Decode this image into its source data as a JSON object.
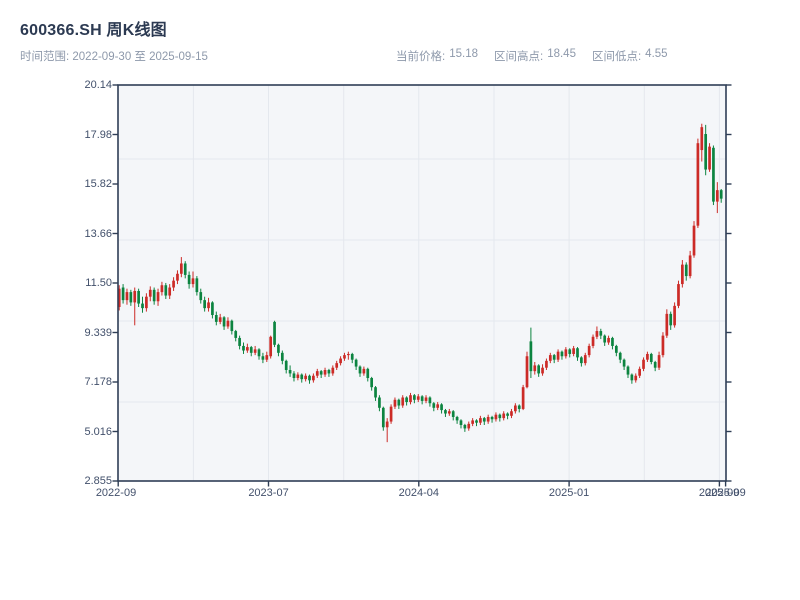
{
  "header": {
    "title": "600366.SH 周K线图",
    "subtitle_left": "时间范围: 2022-09-30 至 2025-09-15",
    "stats": [
      {
        "label": "当前价格:",
        "value": "15.18"
      },
      {
        "label": "区间高点:",
        "value": "18.45"
      },
      {
        "label": "区间低点:",
        "value": "4.55"
      }
    ]
  },
  "chart_data": {
    "type": "candlestick",
    "title": "600366.SH 周K线图",
    "period": "weekly",
    "date_range": [
      "2022-09-30",
      "2025-09-15"
    ],
    "current_price": 15.18,
    "range_high": 18.45,
    "range_low": 4.55,
    "ylim": [
      2.855,
      20.14
    ],
    "y_tick_labels": [
      "20.14",
      "17.98",
      "15.82",
      "13.66",
      "11.50",
      "9.339",
      "7.178",
      "5.016",
      "2.855"
    ],
    "x_tick_labels": [
      "2022-09",
      "2023-07",
      "2024-04",
      "2025-01",
      "2025-09",
      "2025-09"
    ],
    "legend": "none",
    "grid": "on",
    "colors": {
      "up": "#cc2b27",
      "down": "#0c8440",
      "plot_bg": "#f4f6f9",
      "grid": "#e4e8ee",
      "spine": "#2f3e56"
    },
    "candles_ohlc": [
      [
        10.45,
        11.4,
        10.3,
        11.25
      ],
      [
        11.3,
        11.45,
        10.6,
        10.75
      ],
      [
        10.75,
        11.25,
        10.55,
        11.1
      ],
      [
        11.1,
        11.2,
        10.5,
        10.65
      ],
      [
        10.65,
        11.3,
        9.65,
        11.15
      ],
      [
        11.15,
        11.25,
        10.45,
        10.6
      ],
      [
        10.6,
        10.9,
        10.2,
        10.4
      ],
      [
        10.4,
        11.05,
        10.25,
        10.9
      ],
      [
        10.9,
        11.35,
        10.7,
        11.2
      ],
      [
        11.2,
        11.3,
        10.55,
        10.7
      ],
      [
        10.7,
        11.25,
        10.5,
        11.1
      ],
      [
        11.1,
        11.55,
        10.95,
        11.4
      ],
      [
        11.4,
        11.5,
        10.8,
        10.95
      ],
      [
        10.95,
        11.45,
        10.8,
        11.3
      ],
      [
        11.3,
        11.75,
        11.15,
        11.6
      ],
      [
        11.6,
        12.05,
        11.45,
        11.9
      ],
      [
        11.9,
        12.63,
        11.75,
        12.35
      ],
      [
        12.35,
        12.45,
        11.7,
        11.85
      ],
      [
        11.85,
        12.0,
        11.25,
        11.45
      ],
      [
        11.45,
        12.0,
        11.3,
        11.7
      ],
      [
        11.7,
        11.8,
        10.95,
        11.1
      ],
      [
        11.1,
        11.25,
        10.6,
        10.75
      ],
      [
        10.75,
        10.9,
        10.25,
        10.4
      ],
      [
        10.4,
        10.85,
        10.25,
        10.65
      ],
      [
        10.65,
        10.7,
        9.95,
        10.1
      ],
      [
        10.1,
        10.25,
        9.65,
        9.8
      ],
      [
        9.8,
        10.15,
        9.7,
        10.0
      ],
      [
        10.0,
        10.05,
        9.45,
        9.6
      ],
      [
        9.6,
        10.0,
        9.5,
        9.85
      ],
      [
        9.85,
        9.9,
        9.25,
        9.4
      ],
      [
        9.4,
        9.45,
        8.95,
        9.1
      ],
      [
        9.1,
        9.2,
        8.6,
        8.75
      ],
      [
        8.75,
        8.9,
        8.4,
        8.55
      ],
      [
        8.55,
        8.85,
        8.45,
        8.7
      ],
      [
        8.7,
        8.75,
        8.3,
        8.45
      ],
      [
        8.45,
        8.75,
        8.35,
        8.6
      ],
      [
        8.6,
        8.65,
        8.15,
        8.3
      ],
      [
        8.3,
        8.45,
        8.0,
        8.15
      ],
      [
        8.15,
        8.5,
        8.05,
        8.35
      ],
      [
        8.3,
        9.2,
        8.2,
        9.15
      ],
      [
        9.8,
        9.85,
        8.7,
        8.8
      ],
      [
        8.8,
        8.85,
        8.3,
        8.45
      ],
      [
        8.45,
        8.55,
        7.95,
        8.1
      ],
      [
        8.1,
        8.15,
        7.55,
        7.7
      ],
      [
        7.7,
        7.9,
        7.4,
        7.55
      ],
      [
        7.55,
        7.65,
        7.2,
        7.35
      ],
      [
        7.35,
        7.6,
        7.25,
        7.5
      ],
      [
        7.5,
        7.55,
        7.15,
        7.3
      ],
      [
        7.3,
        7.55,
        7.2,
        7.45
      ],
      [
        7.45,
        7.5,
        7.1,
        7.25
      ],
      [
        7.25,
        7.55,
        7.15,
        7.45
      ],
      [
        7.45,
        7.75,
        7.35,
        7.65
      ],
      [
        7.65,
        7.7,
        7.35,
        7.5
      ],
      [
        7.5,
        7.8,
        7.4,
        7.7
      ],
      [
        7.7,
        7.75,
        7.4,
        7.55
      ],
      [
        7.55,
        7.9,
        7.45,
        7.8
      ],
      [
        7.8,
        8.1,
        7.7,
        8.0
      ],
      [
        8.0,
        8.3,
        7.9,
        8.2
      ],
      [
        8.2,
        8.45,
        8.1,
        8.35
      ],
      [
        8.35,
        8.5,
        8.15,
        8.4
      ],
      [
        8.4,
        8.45,
        8.0,
        8.15
      ],
      [
        8.15,
        8.2,
        7.7,
        7.85
      ],
      [
        7.85,
        7.9,
        7.4,
        7.55
      ],
      [
        7.55,
        7.85,
        7.45,
        7.75
      ],
      [
        7.75,
        7.8,
        7.2,
        7.35
      ],
      [
        7.35,
        7.4,
        6.8,
        6.95
      ],
      [
        6.95,
        7.0,
        6.35,
        6.5
      ],
      [
        6.5,
        6.6,
        5.9,
        6.05
      ],
      [
        6.05,
        6.1,
        5.05,
        5.2
      ],
      [
        5.2,
        5.6,
        4.55,
        5.45
      ],
      [
        5.45,
        6.2,
        5.35,
        6.1
      ],
      [
        6.1,
        6.5,
        6.0,
        6.4
      ],
      [
        6.4,
        6.45,
        6.0,
        6.15
      ],
      [
        6.15,
        6.6,
        6.05,
        6.5
      ],
      [
        6.5,
        6.55,
        6.15,
        6.3
      ],
      [
        6.3,
        6.7,
        6.2,
        6.6
      ],
      [
        6.6,
        6.65,
        6.25,
        6.4
      ],
      [
        6.4,
        6.65,
        6.3,
        6.55
      ],
      [
        6.55,
        6.6,
        6.2,
        6.35
      ],
      [
        6.35,
        6.6,
        6.25,
        6.5
      ],
      [
        6.5,
        6.55,
        6.1,
        6.25
      ],
      [
        6.25,
        6.3,
        5.9,
        6.05
      ],
      [
        6.05,
        6.3,
        5.95,
        6.2
      ],
      [
        6.2,
        6.25,
        5.8,
        5.95
      ],
      [
        5.95,
        6.0,
        5.65,
        5.8
      ],
      [
        5.8,
        6.0,
        5.7,
        5.9
      ],
      [
        5.9,
        5.95,
        5.5,
        5.65
      ],
      [
        5.65,
        5.7,
        5.35,
        5.5
      ],
      [
        5.5,
        5.55,
        5.15,
        5.3
      ],
      [
        5.3,
        5.35,
        5.0,
        5.15
      ],
      [
        5.15,
        5.45,
        5.05,
        5.35
      ],
      [
        5.35,
        5.6,
        5.25,
        5.5
      ],
      [
        5.5,
        5.55,
        5.25,
        5.4
      ],
      [
        5.4,
        5.7,
        5.3,
        5.6
      ],
      [
        5.6,
        5.65,
        5.3,
        5.45
      ],
      [
        5.45,
        5.75,
        5.35,
        5.65
      ],
      [
        5.65,
        5.7,
        5.4,
        5.55
      ],
      [
        5.55,
        5.85,
        5.45,
        5.75
      ],
      [
        5.75,
        5.8,
        5.45,
        5.6
      ],
      [
        5.6,
        5.9,
        5.5,
        5.8
      ],
      [
        5.8,
        5.85,
        5.55,
        5.7
      ],
      [
        5.7,
        6.0,
        5.6,
        5.9
      ],
      [
        5.9,
        6.25,
        5.8,
        6.15
      ],
      [
        6.15,
        6.2,
        5.85,
        6.0
      ],
      [
        6.0,
        7.05,
        5.95,
        6.95
      ],
      [
        6.95,
        8.5,
        6.9,
        8.3
      ],
      [
        8.95,
        9.55,
        7.35,
        7.65
      ],
      [
        7.65,
        8.05,
        7.5,
        7.9
      ],
      [
        7.9,
        7.95,
        7.4,
        7.55
      ],
      [
        7.55,
        7.95,
        7.45,
        7.8
      ],
      [
        7.8,
        8.2,
        7.7,
        8.1
      ],
      [
        8.1,
        8.45,
        8.0,
        8.35
      ],
      [
        8.35,
        8.4,
        8.0,
        8.15
      ],
      [
        8.15,
        8.6,
        8.05,
        8.5
      ],
      [
        8.5,
        8.55,
        8.15,
        8.3
      ],
      [
        8.3,
        8.7,
        8.2,
        8.6
      ],
      [
        8.6,
        8.65,
        8.25,
        8.4
      ],
      [
        8.4,
        8.75,
        8.3,
        8.65
      ],
      [
        8.65,
        8.7,
        8.1,
        8.25
      ],
      [
        8.25,
        8.3,
        7.85,
        8.0
      ],
      [
        8.0,
        8.45,
        7.9,
        8.35
      ],
      [
        8.35,
        8.85,
        8.25,
        8.75
      ],
      [
        8.75,
        9.25,
        8.65,
        9.15
      ],
      [
        9.15,
        9.6,
        9.05,
        9.4
      ],
      [
        9.4,
        9.5,
        9.05,
        9.2
      ],
      [
        9.2,
        9.25,
        8.75,
        8.9
      ],
      [
        8.9,
        9.2,
        8.8,
        9.1
      ],
      [
        9.1,
        9.15,
        8.6,
        8.75
      ],
      [
        8.75,
        8.8,
        8.3,
        8.45
      ],
      [
        8.45,
        8.5,
        8.0,
        8.15
      ],
      [
        8.15,
        8.2,
        7.7,
        7.85
      ],
      [
        7.85,
        7.9,
        7.35,
        7.5
      ],
      [
        7.5,
        7.55,
        7.1,
        7.25
      ],
      [
        7.25,
        7.55,
        7.15,
        7.45
      ],
      [
        7.45,
        7.85,
        7.35,
        7.75
      ],
      [
        7.75,
        8.25,
        7.65,
        8.15
      ],
      [
        8.15,
        8.5,
        8.05,
        8.4
      ],
      [
        8.4,
        8.45,
        7.95,
        8.05
      ],
      [
        8.05,
        8.1,
        7.65,
        7.8
      ],
      [
        7.8,
        8.5,
        7.7,
        8.35
      ],
      [
        8.35,
        9.35,
        8.25,
        9.2
      ],
      [
        9.2,
        10.35,
        9.1,
        10.15
      ],
      [
        10.15,
        10.25,
        9.45,
        9.65
      ],
      [
        9.65,
        10.65,
        9.55,
        10.5
      ],
      [
        10.5,
        11.6,
        10.4,
        11.45
      ],
      [
        11.45,
        12.5,
        11.3,
        12.3
      ],
      [
        12.3,
        12.4,
        11.6,
        11.8
      ],
      [
        11.8,
        12.9,
        11.7,
        12.7
      ],
      [
        12.7,
        14.2,
        12.6,
        14.0
      ],
      [
        14.0,
        17.8,
        13.9,
        17.6
      ],
      [
        17.3,
        18.45,
        16.8,
        18.3
      ],
      [
        18.0,
        18.4,
        16.2,
        16.45
      ],
      [
        16.45,
        17.6,
        16.35,
        17.45
      ],
      [
        17.4,
        17.5,
        14.9,
        15.05
      ],
      [
        15.05,
        15.9,
        14.55,
        15.55
      ],
      [
        15.55,
        15.6,
        15.0,
        15.18
      ]
    ]
  }
}
